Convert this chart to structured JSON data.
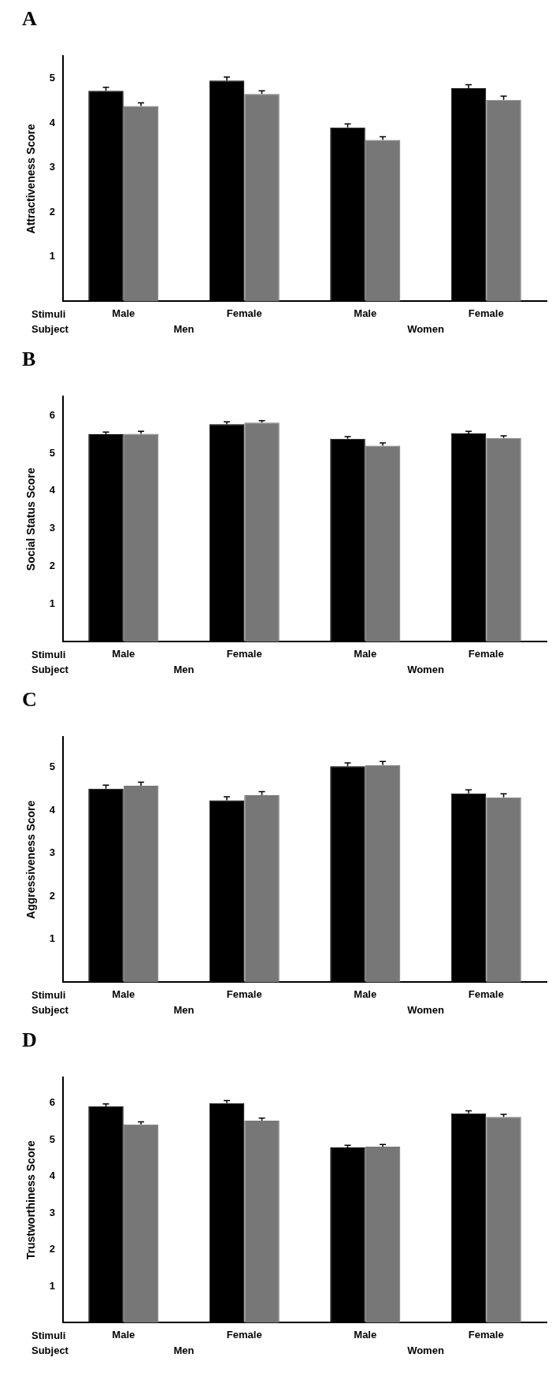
{
  "chart_data": [
    {
      "type": "bar",
      "title": "A",
      "ylabel": "Attractiveness Score",
      "categories": [
        "Male",
        "Female",
        "Male",
        "Female"
      ],
      "series": [
        {
          "color": "#000000",
          "values": [
            4.72,
            4.95,
            3.9,
            4.78
          ],
          "errors": [
            0.08,
            0.08,
            0.08,
            0.08
          ]
        },
        {
          "color": "#777777",
          "values": [
            4.38,
            4.65,
            3.62,
            4.52
          ],
          "errors": [
            0.07,
            0.07,
            0.07,
            0.08
          ]
        }
      ],
      "ylim": [
        0,
        5.5
      ],
      "yticks": [
        1,
        2,
        3,
        4,
        5
      ],
      "annotations": [
        "Stimuli",
        "Subject",
        "Men",
        "Women"
      ]
    },
    {
      "type": "bar",
      "title": "B",
      "ylabel": "Social Status Score",
      "categories": [
        "Male",
        "Female",
        "Male",
        "Female"
      ],
      "series": [
        {
          "color": "#000000",
          "values": [
            5.5,
            5.77,
            5.38,
            5.52
          ],
          "errors": [
            0.06,
            0.06,
            0.06,
            0.06
          ]
        },
        {
          "color": "#777777",
          "values": [
            5.51,
            5.81,
            5.2,
            5.4
          ],
          "errors": [
            0.07,
            0.05,
            0.07,
            0.06
          ]
        }
      ],
      "ylim": [
        0,
        6.5
      ],
      "yticks": [
        1,
        2,
        3,
        4,
        5,
        6
      ],
      "annotations": [
        "Stimuli",
        "Subject",
        "Men",
        "Women"
      ]
    },
    {
      "type": "bar",
      "title": "C",
      "ylabel": "Aggressiveness Score",
      "categories": [
        "Male",
        "Female",
        "Male",
        "Female"
      ],
      "series": [
        {
          "color": "#000000",
          "values": [
            4.5,
            4.23,
            5.02,
            4.39
          ],
          "errors": [
            0.08,
            0.08,
            0.08,
            0.08
          ]
        },
        {
          "color": "#777777",
          "values": [
            4.57,
            4.35,
            5.05,
            4.3
          ],
          "errors": [
            0.08,
            0.08,
            0.08,
            0.08
          ]
        }
      ],
      "ylim": [
        0,
        5.7
      ],
      "yticks": [
        1,
        2,
        3,
        4,
        5
      ],
      "annotations": [
        "Stimuli",
        "Subject",
        "Men",
        "Women"
      ]
    },
    {
      "type": "bar",
      "title": "D",
      "ylabel": "Trustworthiness Score",
      "categories": [
        "Male",
        "Female",
        "Male",
        "Female"
      ],
      "series": [
        {
          "color": "#000000",
          "values": [
            5.91,
            6.0,
            4.79,
            5.72
          ],
          "errors": [
            0.07,
            0.07,
            0.06,
            0.07
          ]
        },
        {
          "color": "#777777",
          "values": [
            5.42,
            5.52,
            4.81,
            5.62
          ],
          "errors": [
            0.07,
            0.07,
            0.06,
            0.07
          ]
        }
      ],
      "ylim": [
        0,
        6.7
      ],
      "yticks": [
        1,
        2,
        3,
        4,
        5,
        6
      ],
      "annotations": [
        "Stimuli",
        "Subject",
        "Men",
        "Women"
      ]
    }
  ]
}
